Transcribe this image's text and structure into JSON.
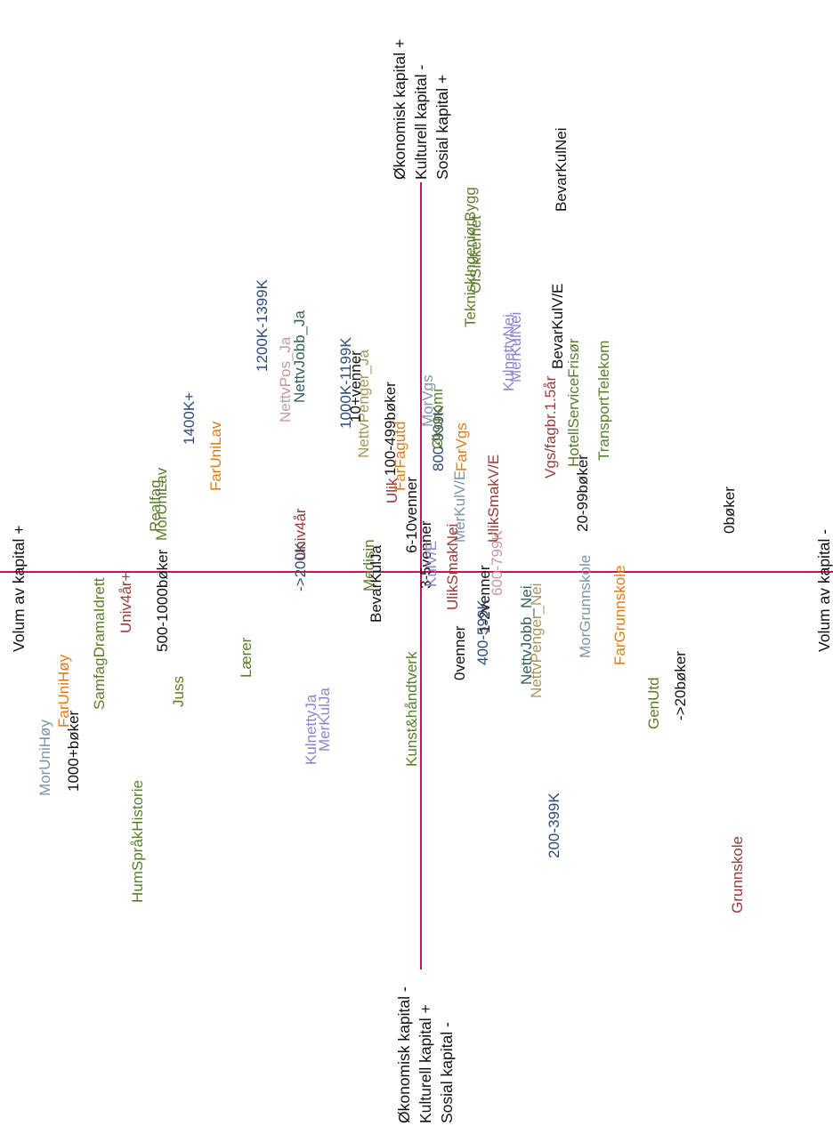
{
  "axes": {
    "horizontal": {
      "left_label": "Volum av kapital +",
      "right_label": "Volum av kapital -"
    },
    "vertical": {
      "top_labels": [
        "Økonomisk kapital +",
        "Kulturell kapital -",
        "Sosial kapital +"
      ],
      "bottom_labels": [
        "Økonomisk kapital -",
        "Kulturell kapital +",
        "Sosial kapital -"
      ]
    },
    "color": "#c2185b"
  },
  "palette": {
    "green": "#5a7d2a",
    "orange": "#e07b1a",
    "red": "#9a3a3a",
    "navy": "#2d4a7a",
    "teal": "#2f5f5f",
    "lavender": "#8a85d0",
    "pink": "#c49a9a",
    "steel": "#7a96a6",
    "tan": "#a8945a",
    "black": "#111111"
  },
  "points": [
    {
      "label": "BevarKulNei",
      "color": "black"
    },
    {
      "label": "TekniskIngeniørBygg",
      "color": "green"
    },
    {
      "label": "OlSikkerhet",
      "color": "green"
    },
    {
      "label": "1200K-1399K",
      "color": "navy"
    },
    {
      "label": "NettvJobb_Ja",
      "color": "teal"
    },
    {
      "label": "NettvPos_Ja",
      "color": "pink"
    },
    {
      "label": "1000K-1199K",
      "color": "navy"
    },
    {
      "label": "NettvPenger_Ja",
      "color": "tan"
    },
    {
      "label": "10+venner",
      "color": "black"
    },
    {
      "label": "100-499bøker",
      "color": "black"
    },
    {
      "label": "FarVgs",
      "color": "orange"
    },
    {
      "label": "MorVgs",
      "color": "steel"
    },
    {
      "label": "800-999K",
      "color": "navy"
    },
    {
      "label": "Økonomi",
      "color": "green"
    },
    {
      "label": "Ulik",
      "color": "red"
    },
    {
      "label": "FarFagutd",
      "color": "orange"
    },
    {
      "label": "KulnettyNei",
      "color": "lavender"
    },
    {
      "label": "MerKulNei",
      "color": "lavender"
    },
    {
      "label": "BevarKulV/E",
      "color": "black"
    },
    {
      "label": "HotellServiceFrisør",
      "color": "green"
    },
    {
      "label": "TransportTelekom",
      "color": "green"
    },
    {
      "label": "Vgs/fagbr.1.5år",
      "color": "red"
    },
    {
      "label": "20-99bøker",
      "color": "black"
    },
    {
      "label": "1400K+",
      "color": "navy"
    },
    {
      "label": "FarUniLav",
      "color": "orange"
    },
    {
      "label": "MorUniLav",
      "color": "green"
    },
    {
      "label": "Realfag",
      "color": "green"
    },
    {
      "label": "500-1000bøker",
      "color": "black"
    },
    {
      "label": "Volum av kapital +",
      "color": "black",
      "axis": true
    },
    {
      "label": "SamfagDramaIdrett",
      "color": "green"
    },
    {
      "label": "Univ4år+",
      "color": "red"
    },
    {
      "label": "->200K",
      "color": "navy"
    },
    {
      "label": "Univ4år",
      "color": "red"
    },
    {
      "label": "Medisin",
      "color": "green"
    },
    {
      "label": "BevarKulJa",
      "color": "black"
    },
    {
      "label": "6-10venner",
      "color": "black"
    },
    {
      "label": "3-5venner",
      "color": "black"
    },
    {
      "label": "KulV/E",
      "color": "lavender"
    },
    {
      "label": "MerKulV/E",
      "color": "steel"
    },
    {
      "label": "UlikSmakV/E",
      "color": "red"
    },
    {
      "label": "UlikSmakNei",
      "color": "red"
    },
    {
      "label": "600-799K",
      "color": "pink"
    },
    {
      "label": "1-2venner",
      "color": "black"
    },
    {
      "label": "400-599K",
      "color": "navy"
    },
    {
      "label": "0venner",
      "color": "black"
    },
    {
      "label": "NettvJobb_Nei",
      "color": "teal"
    },
    {
      "label": "NettvPenger_Nei",
      "color": "tan"
    },
    {
      "label": "MorGrunnskole",
      "color": "steel"
    },
    {
      "label": "FarGrunnskole",
      "color": "orange"
    },
    {
      "label": "0bøker",
      "color": "black"
    },
    {
      "label": "GenUtd",
      "color": "green"
    },
    {
      "label": "->20bøker",
      "color": "black"
    },
    {
      "label": "200-399K",
      "color": "navy"
    },
    {
      "label": "Grunnskole",
      "color": "red"
    },
    {
      "label": "MorUniHøy",
      "color": "steel"
    },
    {
      "label": "FarUniHøy",
      "color": "orange"
    },
    {
      "label": "1000+bøker",
      "color": "black"
    },
    {
      "label": "HumSpråkHistorie",
      "color": "green"
    },
    {
      "label": "Juss",
      "color": "green"
    },
    {
      "label": "Lærer",
      "color": "green"
    },
    {
      "label": "KulnettyJa",
      "color": "lavender"
    },
    {
      "label": "MerKulJa",
      "color": "lavender"
    },
    {
      "label": "Kunst&håndtverk",
      "color": "green"
    }
  ]
}
